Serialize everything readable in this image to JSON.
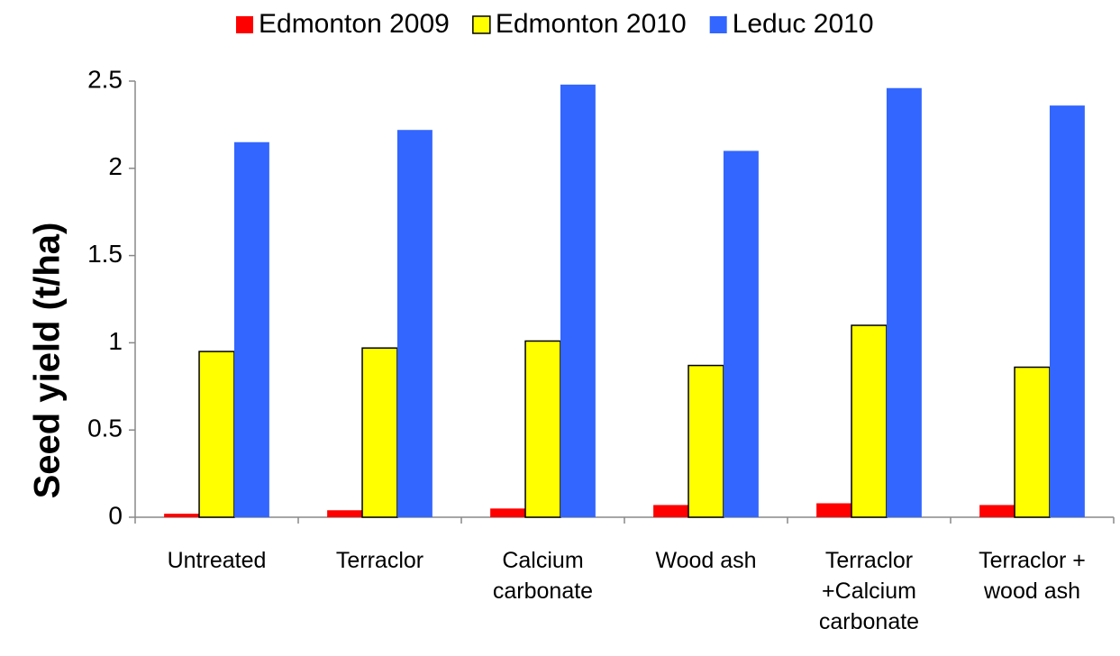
{
  "chart_data": {
    "type": "bar",
    "y_label": "Seed yield (t/ha)",
    "categories": [
      "Untreated",
      "Terraclor",
      "Calcium carbonate",
      "Wood ash",
      "Terraclor +Calcium carbonate",
      "Terraclor + wood ash"
    ],
    "series": [
      {
        "name": "Edmonton 2009",
        "color": "#ff0000",
        "values": [
          0.02,
          0.04,
          0.05,
          0.07,
          0.08,
          0.07
        ]
      },
      {
        "name": "Edmonton 2010",
        "color": "#ffff00",
        "values": [
          0.95,
          0.97,
          1.01,
          0.87,
          1.1,
          0.86
        ]
      },
      {
        "name": "Leduc 2010",
        "color": "#3366ff",
        "values": [
          2.15,
          2.22,
          2.48,
          2.1,
          2.46,
          2.36
        ]
      }
    ],
    "ylim": [
      0,
      2.5
    ],
    "yticks": [
      0,
      0.5,
      1,
      1.5,
      2,
      2.5
    ],
    "legend": "top",
    "grid": false
  }
}
